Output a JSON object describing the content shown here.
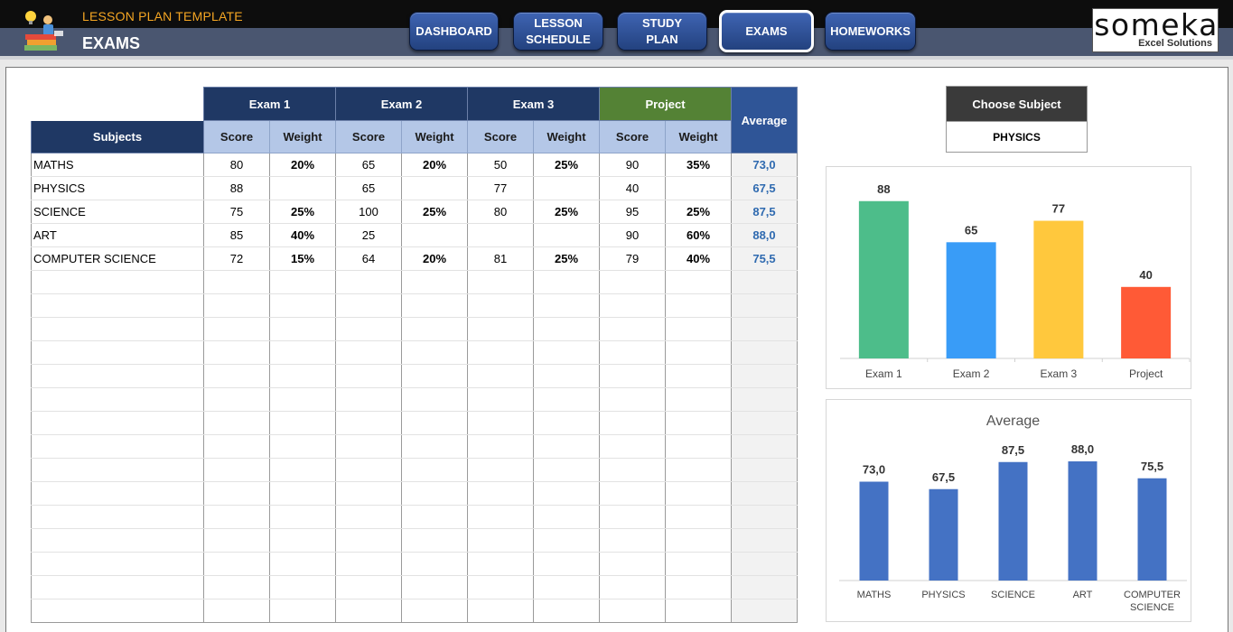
{
  "header": {
    "app_title": "LESSON PLAN TEMPLATE",
    "page_title": "EXAMS",
    "brand_name": "someka",
    "brand_sub": "Excel Solutions",
    "nav": [
      {
        "label": "DASHBOARD",
        "active": false
      },
      {
        "label": "LESSON\nSCHEDULE",
        "active": false
      },
      {
        "label": "STUDY\nPLAN",
        "active": false
      },
      {
        "label": "EXAMS",
        "active": true
      },
      {
        "label": "HOMEWORKS",
        "active": false
      }
    ]
  },
  "table": {
    "groups": [
      "Exam 1",
      "Exam 2",
      "Exam 3",
      "Project"
    ],
    "average_label": "Average",
    "subjects_label": "Subjects",
    "score_label": "Score",
    "weight_label": "Weight",
    "rows": [
      {
        "subject": "MATHS",
        "cells": [
          "80",
          "20%",
          "65",
          "20%",
          "50",
          "25%",
          "90",
          "35%"
        ],
        "average": "73,0"
      },
      {
        "subject": "PHYSICS",
        "cells": [
          "88",
          "",
          "65",
          "",
          "77",
          "",
          "40",
          ""
        ],
        "average": "67,5"
      },
      {
        "subject": "SCIENCE",
        "cells": [
          "75",
          "25%",
          "100",
          "25%",
          "80",
          "25%",
          "95",
          "25%"
        ],
        "average": "87,5"
      },
      {
        "subject": "ART",
        "cells": [
          "85",
          "40%",
          "25",
          "",
          "",
          "",
          "90",
          "60%"
        ],
        "average": "88,0"
      },
      {
        "subject": "COMPUTER SCIENCE",
        "cells": [
          "72",
          "15%",
          "64",
          "20%",
          "81",
          "25%",
          "79",
          "40%"
        ],
        "average": "75,5"
      }
    ],
    "empty_rows": 15
  },
  "chooser": {
    "label": "Choose Subject",
    "value": "PHYSICS"
  },
  "chart_data": [
    {
      "type": "bar",
      "title": "",
      "categories": [
        "Exam 1",
        "Exam 2",
        "Exam 3",
        "Project"
      ],
      "values": [
        88,
        65,
        77,
        40
      ],
      "value_labels": [
        "88",
        "65",
        "77",
        "40"
      ],
      "colors": [
        "#4dbd8a",
        "#399cf7",
        "#ffc83d",
        "#ff5a36"
      ],
      "ylim": [
        0,
        100
      ],
      "grid": false
    },
    {
      "type": "bar",
      "title": "Average",
      "categories": [
        "MATHS",
        "PHYSICS",
        "SCIENCE",
        "ART",
        "COMPUTER SCIENCE"
      ],
      "category_lines": [
        [
          "MATHS"
        ],
        [
          "PHYSICS"
        ],
        [
          "SCIENCE"
        ],
        [
          "ART"
        ],
        [
          "COMPUTER",
          "SCIENCE"
        ]
      ],
      "values": [
        73.0,
        67.5,
        87.5,
        88.0,
        75.5
      ],
      "value_labels": [
        "73,0",
        "67,5",
        "87,5",
        "88,0",
        "75,5"
      ],
      "colors": [
        "#4472c4"
      ],
      "ylim": [
        0,
        100
      ],
      "grid": false
    }
  ]
}
